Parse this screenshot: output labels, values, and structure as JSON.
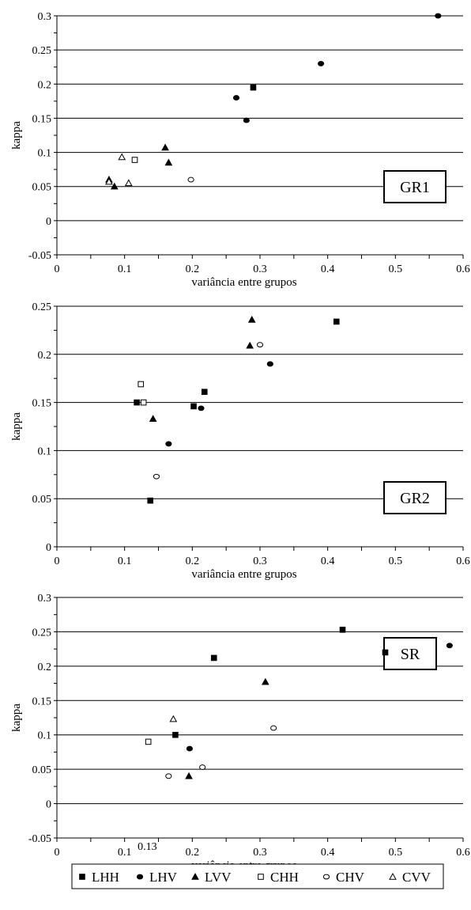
{
  "legend": {
    "entries": [
      {
        "name": "LHH",
        "marker": "square-filled"
      },
      {
        "name": "LHV",
        "marker": "circle-filled"
      },
      {
        "name": "LVV",
        "marker": "triangle-filled"
      },
      {
        "name": "CHH",
        "marker": "square-open"
      },
      {
        "name": "CHV",
        "marker": "circle-open"
      },
      {
        "name": "CVV",
        "marker": "triangle-open"
      }
    ]
  },
  "chart_data": [
    {
      "type": "scatter",
      "label_box": "GR1",
      "xlabel": "variância entre grupos",
      "ylabel": "kappa",
      "xlim": [
        0,
        0.6
      ],
      "ylim": [
        -0.05,
        0.3
      ],
      "xticks": [
        "0",
        "0.1",
        "0.2",
        "0.3",
        "0.4",
        "0.5",
        "0.6"
      ],
      "yticks": [
        "-0.05",
        "0",
        "0.05",
        "0.1",
        "0.15",
        "0.2",
        "0.25",
        "0.3"
      ],
      "grid": "horizontal",
      "series": [
        {
          "name": "LHH",
          "points": [
            [
              0.29,
              0.195
            ]
          ]
        },
        {
          "name": "LHV",
          "points": [
            [
              0.265,
              0.18
            ],
            [
              0.28,
              0.147
            ],
            [
              0.39,
              0.23
            ],
            [
              0.563,
              0.3
            ]
          ]
        },
        {
          "name": "LVV",
          "points": [
            [
              0.077,
              0.06
            ],
            [
              0.085,
              0.05
            ],
            [
              0.16,
              0.107
            ],
            [
              0.165,
              0.085
            ]
          ]
        },
        {
          "name": "CHH",
          "points": [
            [
              0.115,
              0.089
            ]
          ]
        },
        {
          "name": "CHV",
          "points": [
            [
              0.198,
              0.06
            ]
          ]
        },
        {
          "name": "CVV",
          "points": [
            [
              0.077,
              0.057
            ],
            [
              0.096,
              0.093
            ],
            [
              0.106,
              0.055
            ]
          ]
        }
      ]
    },
    {
      "type": "scatter",
      "label_box": "GR2",
      "xlabel": "variância entre grupos",
      "ylabel": "kappa",
      "xlim": [
        0,
        0.6
      ],
      "ylim": [
        0,
        0.25
      ],
      "xticks": [
        "0",
        "0.1",
        "0.2",
        "0.3",
        "0.4",
        "0.5",
        "0.6"
      ],
      "yticks": [
        "0",
        "0.05",
        "0.1",
        "0.15",
        "0.2",
        "0.25"
      ],
      "grid": "horizontal",
      "series": [
        {
          "name": "LHH",
          "points": [
            [
              0.118,
              0.15
            ],
            [
              0.138,
              0.048
            ],
            [
              0.202,
              0.146
            ],
            [
              0.218,
              0.161
            ],
            [
              0.413,
              0.234
            ]
          ]
        },
        {
          "name": "LHV",
          "points": [
            [
              0.165,
              0.107
            ],
            [
              0.213,
              0.144
            ],
            [
              0.315,
              0.19
            ]
          ]
        },
        {
          "name": "LVV",
          "points": [
            [
              0.142,
              0.133
            ],
            [
              0.285,
              0.209
            ],
            [
              0.288,
              0.236
            ]
          ]
        },
        {
          "name": "CHH",
          "points": [
            [
              0.124,
              0.169
            ],
            [
              0.128,
              0.15
            ]
          ]
        },
        {
          "name": "CHV",
          "points": [
            [
              0.147,
              0.073
            ],
            [
              0.3,
              0.21
            ]
          ]
        },
        {
          "name": "CVV",
          "points": []
        }
      ]
    },
    {
      "type": "scatter",
      "label_box": "SR",
      "xlabel": "variância entre grupos",
      "ylabel": "kappa",
      "xlim": [
        0,
        0.6
      ],
      "ylim": [
        -0.05,
        0.3
      ],
      "xticks": [
        "0",
        "0.1",
        "0.2",
        "0.3",
        "0.4",
        "0.5",
        "0.6"
      ],
      "x_annotation": "0.13",
      "yticks": [
        "-0.05",
        "0",
        "0.05",
        "0.1",
        "0.15",
        "0.2",
        "0.25",
        "0.3"
      ],
      "grid": "horizontal",
      "series": [
        {
          "name": "LHH",
          "points": [
            [
              0.175,
              0.1
            ],
            [
              0.232,
              0.212
            ],
            [
              0.422,
              0.253
            ],
            [
              0.485,
              0.22
            ]
          ]
        },
        {
          "name": "LHV",
          "points": [
            [
              0.196,
              0.08
            ],
            [
              0.58,
              0.23
            ]
          ]
        },
        {
          "name": "LVV",
          "points": [
            [
              0.195,
              0.04
            ],
            [
              0.308,
              0.177
            ]
          ]
        },
        {
          "name": "CHH",
          "points": [
            [
              0.135,
              0.09
            ]
          ]
        },
        {
          "name": "CHV",
          "points": [
            [
              0.165,
              0.04
            ],
            [
              0.215,
              0.053
            ],
            [
              0.32,
              0.11
            ]
          ]
        },
        {
          "name": "CVV",
          "points": [
            [
              0.172,
              0.123
            ]
          ]
        }
      ]
    }
  ]
}
